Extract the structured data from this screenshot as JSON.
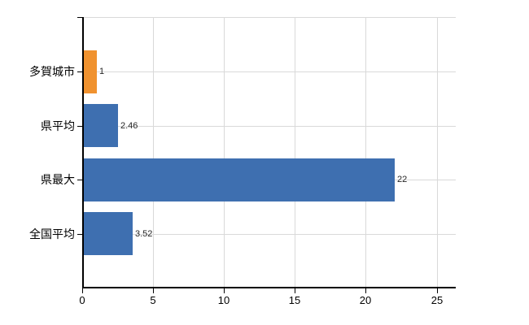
{
  "page": {
    "background": "#ffffff"
  },
  "chart_data": {
    "type": "bar",
    "orientation": "horizontal",
    "title": "",
    "xlabel": "",
    "ylabel": "",
    "legend": "none",
    "grid": "on",
    "categories": [
      "多賀城市",
      "県平均",
      "県最大",
      "全国平均"
    ],
    "values": [
      1,
      2.46,
      22,
      3.52
    ],
    "value_labels": [
      "1",
      "2.46",
      "22",
      "3.52"
    ],
    "bar_colors": [
      "#f0922f",
      "#3e6fb0",
      "#3e6fb0",
      "#3e6fb0"
    ],
    "x_tick_labels": [
      "0",
      "5",
      "10",
      "15",
      "20",
      "25"
    ],
    "x_tick_values": [
      0,
      5,
      10,
      15,
      20,
      25
    ],
    "xlim": [
      0,
      26.4
    ],
    "colors": {
      "bar_primary": "#3e6fb0",
      "bar_highlight": "#f0922f",
      "grid": "#d9d9d9",
      "axis": "#000000",
      "category_text": "#000000",
      "value_text": "#262626",
      "background": "#ffffff"
    }
  }
}
